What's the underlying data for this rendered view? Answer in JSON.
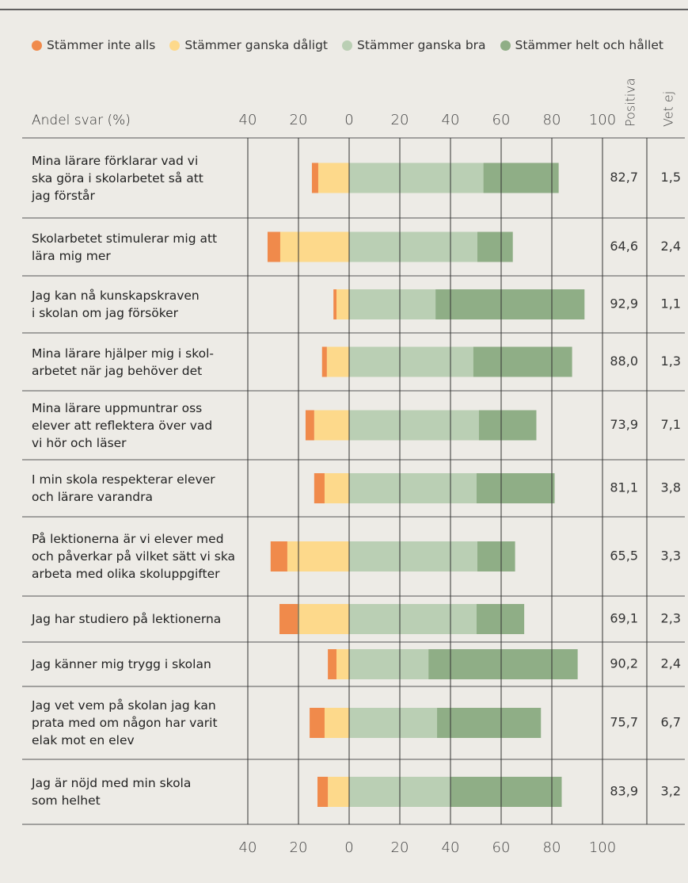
{
  "chart_data": {
    "type": "diverging_bar",
    "axis_label": "Andel svar (%)",
    "categories": [
      "Mina lärare förklarar vad vi\nska göra i skolarbetet så att\njag förstår",
      "Skolarbetet stimulerar mig att\nlära mig mer",
      "Jag kan nå kunskapskraven\ni skolan om jag försöker",
      "Mina lärare hjälper mig i skol-\narbetet när jag behöver det",
      "Mina lärare uppmuntrar oss\nelever att reflektera över vad\nvi hör och läser",
      "I min skola respekterar elever\noch lärare varandra",
      "På lektionerna är vi elever med\noch påverkar på vilket sätt vi ska\narbeta med olika skoluppgifter",
      "Jag har studiero på lektionerna",
      "Jag känner mig trygg i skolan",
      "Jag vet vem på skolan jag kan\nprata med om någon har varit\nelak mot en elev",
      "Jag är nöjd med min skola\nsom helhet"
    ],
    "series": [
      {
        "name": "Stämmer inte alls",
        "color": "#f08a4b",
        "values": [
          -2.5,
          -5.0,
          -1.2,
          -1.9,
          -3.4,
          -4.1,
          -6.6,
          -7.2,
          -3.4,
          -5.9,
          -4.1
        ]
      },
      {
        "name": "Stämmer ganska dåligt",
        "color": "#fdd98b",
        "values": [
          -12.2,
          -27.2,
          -5.0,
          -8.8,
          -13.8,
          -9.7,
          -24.4,
          -20.3,
          -5.0,
          -9.7,
          -8.4
        ]
      },
      {
        "name": "Stämmer ganska bra",
        "color": "#bacfb4",
        "values": [
          53.0,
          50.6,
          34.1,
          49.0,
          51.2,
          50.3,
          50.6,
          50.3,
          31.3,
          34.7,
          40.0
        ]
      },
      {
        "name": "Stämmer helt och hållet",
        "color": "#8fae86",
        "values": [
          29.7,
          14.0,
          58.8,
          39.0,
          22.7,
          30.8,
          14.9,
          18.8,
          58.9,
          41.0,
          43.9
        ]
      }
    ],
    "xlim": [
      -40,
      100
    ],
    "xticks": [
      {
        "value": -40,
        "label": "40"
      },
      {
        "value": -20,
        "label": "20"
      },
      0,
      20,
      40,
      60,
      80,
      100
    ],
    "grid": true,
    "columns": [
      {
        "name": "Positiva",
        "labels": [
          "82,7",
          "64,6",
          "92,9",
          "88,0",
          "73,9",
          "81,1",
          "65,5",
          "69,1",
          "90,2",
          "75,7",
          "83,9"
        ]
      },
      {
        "name": "Vet ej",
        "labels": [
          "1,5",
          "2,4",
          "1,1",
          "1,3",
          "7,1",
          "3,8",
          "3,3",
          "2,3",
          "2,4",
          "6,7",
          "3,2"
        ]
      }
    ]
  }
}
